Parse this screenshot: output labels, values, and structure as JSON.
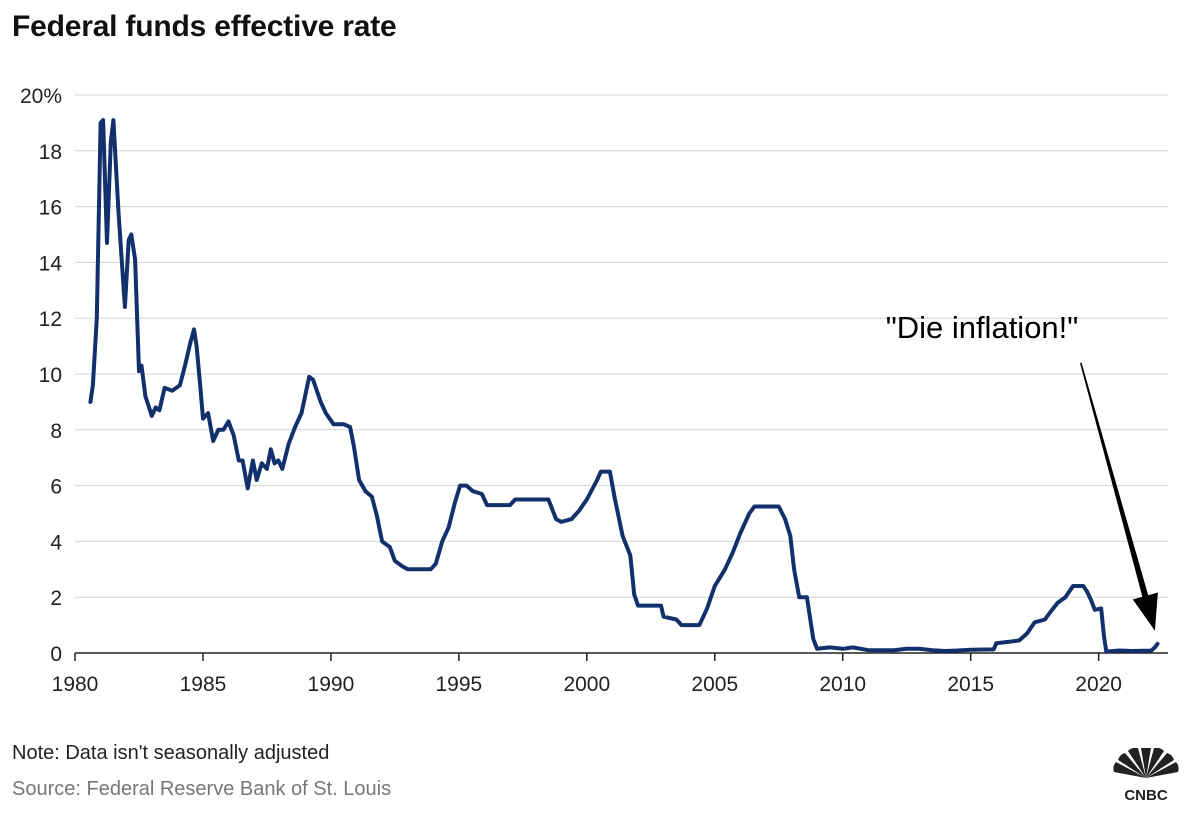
{
  "chart_data": {
    "type": "line",
    "title": "Federal funds effective rate",
    "xlabel": "",
    "ylabel": "",
    "xlim": [
      1980,
      2022.7
    ],
    "ylim": [
      0,
      20
    ],
    "x_ticks": [
      1980,
      1985,
      1990,
      1995,
      2000,
      2005,
      2010,
      2015,
      2020
    ],
    "x_tick_labels": [
      "1980",
      "1985",
      "1990",
      "1995",
      "2000",
      "2005",
      "2010",
      "2015",
      "2020"
    ],
    "y_ticks": [
      0,
      2,
      4,
      6,
      8,
      10,
      12,
      14,
      16,
      18,
      20
    ],
    "y_tick_labels": [
      "0",
      "2",
      "4",
      "6",
      "8",
      "10",
      "12",
      "14",
      "16",
      "18",
      "20%"
    ],
    "grid": true,
    "series": [
      {
        "name": "Federal funds effective rate",
        "color": "#12306b",
        "points": [
          [
            1980.6,
            9.0
          ],
          [
            1980.7,
            9.6
          ],
          [
            1980.85,
            12.0
          ],
          [
            1981.0,
            19.0
          ],
          [
            1981.1,
            19.1
          ],
          [
            1981.25,
            14.7
          ],
          [
            1981.4,
            18.3
          ],
          [
            1981.5,
            19.1
          ],
          [
            1981.7,
            15.8
          ],
          [
            1981.95,
            12.4
          ],
          [
            1982.1,
            14.8
          ],
          [
            1982.2,
            15.0
          ],
          [
            1982.35,
            14.1
          ],
          [
            1982.5,
            10.1
          ],
          [
            1982.6,
            10.3
          ],
          [
            1982.75,
            9.2
          ],
          [
            1983.0,
            8.5
          ],
          [
            1983.15,
            8.8
          ],
          [
            1983.3,
            8.7
          ],
          [
            1983.5,
            9.5
          ],
          [
            1983.8,
            9.4
          ],
          [
            1984.1,
            9.6
          ],
          [
            1984.3,
            10.3
          ],
          [
            1984.5,
            11.1
          ],
          [
            1984.65,
            11.6
          ],
          [
            1984.75,
            11.0
          ],
          [
            1984.9,
            9.5
          ],
          [
            1985.0,
            8.4
          ],
          [
            1985.2,
            8.6
          ],
          [
            1985.4,
            7.6
          ],
          [
            1985.6,
            8.0
          ],
          [
            1985.8,
            8.0
          ],
          [
            1986.0,
            8.3
          ],
          [
            1986.2,
            7.8
          ],
          [
            1986.4,
            6.9
          ],
          [
            1986.55,
            6.9
          ],
          [
            1986.75,
            5.9
          ],
          [
            1986.95,
            6.9
          ],
          [
            1987.1,
            6.2
          ],
          [
            1987.3,
            6.8
          ],
          [
            1987.5,
            6.6
          ],
          [
            1987.65,
            7.3
          ],
          [
            1987.8,
            6.8
          ],
          [
            1987.95,
            6.9
          ],
          [
            1988.1,
            6.6
          ],
          [
            1988.35,
            7.5
          ],
          [
            1988.6,
            8.1
          ],
          [
            1988.85,
            8.6
          ],
          [
            1989.15,
            9.9
          ],
          [
            1989.3,
            9.8
          ],
          [
            1989.6,
            9.0
          ],
          [
            1989.8,
            8.6
          ],
          [
            1990.1,
            8.2
          ],
          [
            1990.5,
            8.2
          ],
          [
            1990.75,
            8.1
          ],
          [
            1990.9,
            7.4
          ],
          [
            1991.1,
            6.2
          ],
          [
            1991.35,
            5.8
          ],
          [
            1991.6,
            5.6
          ],
          [
            1991.8,
            4.9
          ],
          [
            1992.0,
            4.0
          ],
          [
            1992.3,
            3.8
          ],
          [
            1992.5,
            3.3
          ],
          [
            1992.8,
            3.1
          ],
          [
            1993.0,
            3.0
          ],
          [
            1993.3,
            3.0
          ],
          [
            1993.6,
            3.0
          ],
          [
            1993.9,
            3.0
          ],
          [
            1994.1,
            3.2
          ],
          [
            1994.35,
            4.0
          ],
          [
            1994.6,
            4.5
          ],
          [
            1994.85,
            5.4
          ],
          [
            1995.05,
            6.0
          ],
          [
            1995.3,
            6.0
          ],
          [
            1995.55,
            5.8
          ],
          [
            1995.9,
            5.7
          ],
          [
            1996.1,
            5.3
          ],
          [
            1996.4,
            5.3
          ],
          [
            1996.7,
            5.3
          ],
          [
            1997.0,
            5.3
          ],
          [
            1997.2,
            5.5
          ],
          [
            1997.5,
            5.5
          ],
          [
            1997.8,
            5.5
          ],
          [
            1998.1,
            5.5
          ],
          [
            1998.5,
            5.5
          ],
          [
            1998.8,
            4.8
          ],
          [
            1999.0,
            4.7
          ],
          [
            1999.4,
            4.8
          ],
          [
            1999.7,
            5.1
          ],
          [
            2000.0,
            5.5
          ],
          [
            2000.4,
            6.2
          ],
          [
            2000.55,
            6.5
          ],
          [
            2000.9,
            6.5
          ],
          [
            2001.1,
            5.5
          ],
          [
            2001.4,
            4.2
          ],
          [
            2001.7,
            3.5
          ],
          [
            2001.85,
            2.1
          ],
          [
            2002.0,
            1.7
          ],
          [
            2002.5,
            1.7
          ],
          [
            2002.9,
            1.7
          ],
          [
            2003.0,
            1.3
          ],
          [
            2003.5,
            1.2
          ],
          [
            2003.7,
            1.0
          ],
          [
            2004.0,
            1.0
          ],
          [
            2004.4,
            1.0
          ],
          [
            2004.7,
            1.6
          ],
          [
            2005.0,
            2.4
          ],
          [
            2005.4,
            3.0
          ],
          [
            2005.7,
            3.6
          ],
          [
            2006.0,
            4.3
          ],
          [
            2006.35,
            5.0
          ],
          [
            2006.55,
            5.25
          ],
          [
            2007.0,
            5.25
          ],
          [
            2007.5,
            5.25
          ],
          [
            2007.75,
            4.8
          ],
          [
            2007.95,
            4.2
          ],
          [
            2008.1,
            3.0
          ],
          [
            2008.3,
            2.0
          ],
          [
            2008.6,
            2.0
          ],
          [
            2008.85,
            0.5
          ],
          [
            2009.0,
            0.15
          ],
          [
            2009.5,
            0.2
          ],
          [
            2010.0,
            0.15
          ],
          [
            2010.4,
            0.2
          ],
          [
            2011.0,
            0.1
          ],
          [
            2011.5,
            0.1
          ],
          [
            2012.0,
            0.1
          ],
          [
            2012.5,
            0.15
          ],
          [
            2013.0,
            0.15
          ],
          [
            2013.5,
            0.1
          ],
          [
            2014.0,
            0.07
          ],
          [
            2014.5,
            0.09
          ],
          [
            2015.0,
            0.12
          ],
          [
            2015.9,
            0.13
          ],
          [
            2016.0,
            0.35
          ],
          [
            2016.5,
            0.4
          ],
          [
            2016.9,
            0.45
          ],
          [
            2017.2,
            0.7
          ],
          [
            2017.5,
            1.1
          ],
          [
            2017.9,
            1.2
          ],
          [
            2018.1,
            1.45
          ],
          [
            2018.4,
            1.8
          ],
          [
            2018.7,
            2.0
          ],
          [
            2019.0,
            2.4
          ],
          [
            2019.4,
            2.4
          ],
          [
            2019.55,
            2.2
          ],
          [
            2019.7,
            1.9
          ],
          [
            2019.85,
            1.55
          ],
          [
            2020.1,
            1.6
          ],
          [
            2020.2,
            0.65
          ],
          [
            2020.3,
            0.05
          ],
          [
            2020.8,
            0.09
          ],
          [
            2021.3,
            0.07
          ],
          [
            2021.8,
            0.08
          ],
          [
            2022.05,
            0.08
          ],
          [
            2022.2,
            0.2
          ],
          [
            2022.3,
            0.33
          ]
        ]
      }
    ],
    "annotations": [
      {
        "text": "\"Die inflation!\"",
        "arrow_from": [
          2019.3,
          10.4
        ],
        "arrow_to": [
          2022.2,
          0.8
        ]
      }
    ]
  },
  "footer": {
    "note": "Note: Data isn't seasonally adjusted",
    "source": "Source: Federal Reserve Bank of St. Louis",
    "logo_text": "CNBC"
  },
  "colors": {
    "line": "#12306b",
    "grid": "#d3d3d3",
    "axis": "#222222",
    "arrow": "#000000"
  }
}
